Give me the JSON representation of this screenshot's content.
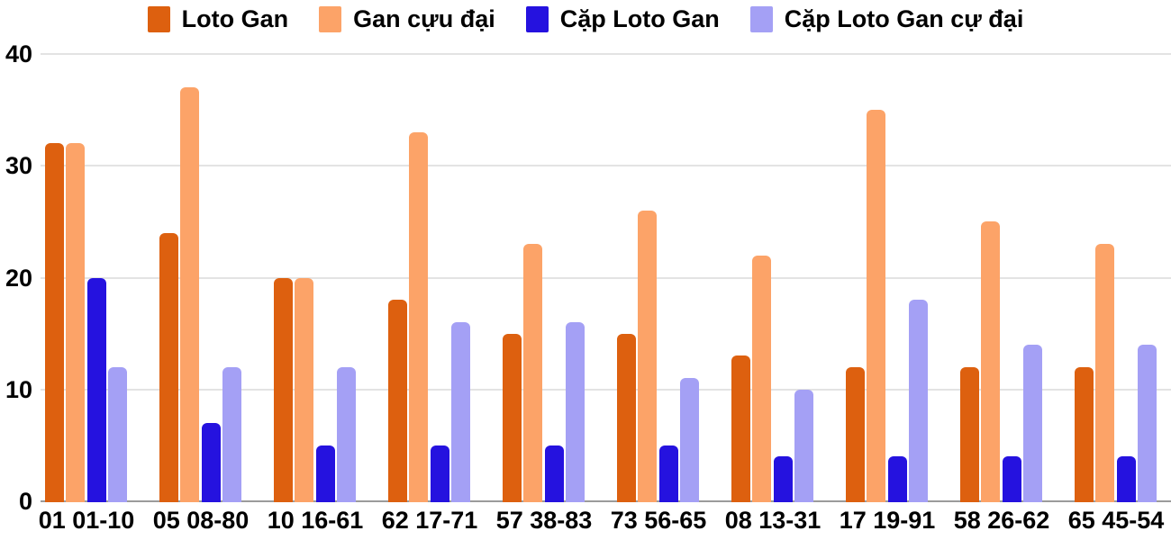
{
  "chart_data": {
    "type": "bar",
    "title": "",
    "xlabel": "",
    "ylabel": "",
    "categories": [
      "01 01-10",
      "05 08-80",
      "10 16-61",
      "62 17-71",
      "57 38-83",
      "73 56-65",
      "08 13-31",
      "17 19-91",
      "58 26-62",
      "65 45-54"
    ],
    "series": [
      {
        "name": "Loto Gan",
        "color": "#DD600F",
        "values": [
          32,
          24,
          20,
          18,
          15,
          15,
          13,
          12,
          12,
          12
        ]
      },
      {
        "name": "Gan cựu đại",
        "color": "#FCA368",
        "values": [
          32,
          37,
          20,
          33,
          23,
          26,
          22,
          35,
          25,
          23
        ]
      },
      {
        "name": "Cặp Loto Gan",
        "color": "#2512DF",
        "values": [
          20,
          7,
          5,
          5,
          5,
          5,
          4,
          4,
          4,
          4
        ]
      },
      {
        "name": "Cặp Loto Gan cự đại",
        "color": "#A4A0F5",
        "values": [
          12,
          12,
          12,
          16,
          16,
          11,
          10,
          18,
          14,
          14
        ]
      }
    ],
    "ylim": [
      0,
      40
    ],
    "yticks": [
      0,
      10,
      20,
      30,
      40
    ],
    "grid": true,
    "legend_position": "top"
  },
  "colors": {
    "background": "#FFFFFF",
    "gridline": "#E3E3E3",
    "baseline": "#9B9B9B",
    "text": "#000000"
  }
}
